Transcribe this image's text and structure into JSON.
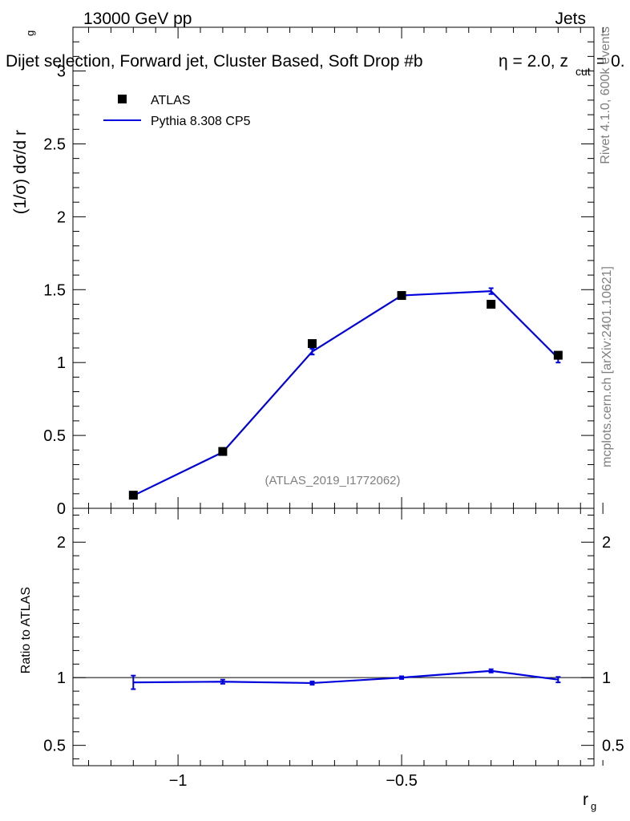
{
  "header": {
    "left": "13000 GeV pp",
    "right": "Jets",
    "selection": "Dijet selection, Forward jet, Cluster Based, Soft Drop #b",
    "selection_tail_eta": "η = 2.0, z",
    "selection_tail_cut": "cut",
    "selection_tail_end": "= 0."
  },
  "side_labels": {
    "rivet": "Rivet 4.1.0,  600k events",
    "mcplots": "mcplots.cern.ch [arXiv:2401.10621]"
  },
  "watermark": "(ATLAS_2019_I1772062)",
  "legend": {
    "data": "ATLAS",
    "mc": "Pythia 8.308 CP5"
  },
  "colors": {
    "data": "#000000",
    "mc": "#0000dd",
    "gray": "#7f7f7f"
  },
  "chart_data": [
    {
      "type": "scatter",
      "panel": "main",
      "ylabel": "(1/σ) dσ/d r",
      "ylabel_sub": "g",
      "xlim": [
        -1.235,
        -0.07
      ],
      "ylim": [
        0,
        3.3
      ],
      "yticks": [
        0,
        0.5,
        1,
        1.5,
        2,
        2.5,
        3
      ],
      "ytick_labels": [
        "0",
        "0.5",
        "1",
        "1.5",
        "2",
        "2.5",
        "3"
      ],
      "series": [
        {
          "name": "ATLAS",
          "kind": "points",
          "x": [
            -1.1,
            -0.9,
            -0.7,
            -0.5,
            -0.3,
            -0.15
          ],
          "y": [
            0.09,
            0.39,
            1.13,
            1.46,
            1.4,
            1.05
          ]
        },
        {
          "name": "Pythia 8.308 CP5",
          "kind": "line",
          "x": [
            -1.1,
            -0.9,
            -0.7,
            -0.5,
            -0.3,
            -0.15
          ],
          "y": [
            0.087,
            0.385,
            1.075,
            1.46,
            1.49,
            1.03
          ],
          "yerr": [
            0.003,
            0.005,
            0.02,
            0.01,
            0.02,
            0.03
          ]
        }
      ]
    },
    {
      "type": "line",
      "panel": "ratio",
      "ylabel": "Ratio to ATLAS",
      "xlabel": "r",
      "xlabel_sub": "g",
      "xlim": [
        -1.235,
        -0.07
      ],
      "ylim": [
        0.35,
        2.25
      ],
      "yticks": [
        0.5,
        1,
        2
      ],
      "ytick_labels": [
        "0.5",
        "1",
        "2"
      ],
      "xticks": [
        -1,
        -0.5
      ],
      "xtick_labels": [
        "−1",
        "−0.5"
      ],
      "reference": 1,
      "series": [
        {
          "name": "Pythia 8.308 CP5",
          "x": [
            -1.1,
            -0.9,
            -0.7,
            -0.5,
            -0.3,
            -0.15
          ],
          "y": [
            0.965,
            0.97,
            0.96,
            1.0,
            1.05,
            0.985
          ],
          "yerr": [
            0.05,
            0.015,
            0.012,
            0.01,
            0.012,
            0.02
          ]
        }
      ]
    }
  ]
}
